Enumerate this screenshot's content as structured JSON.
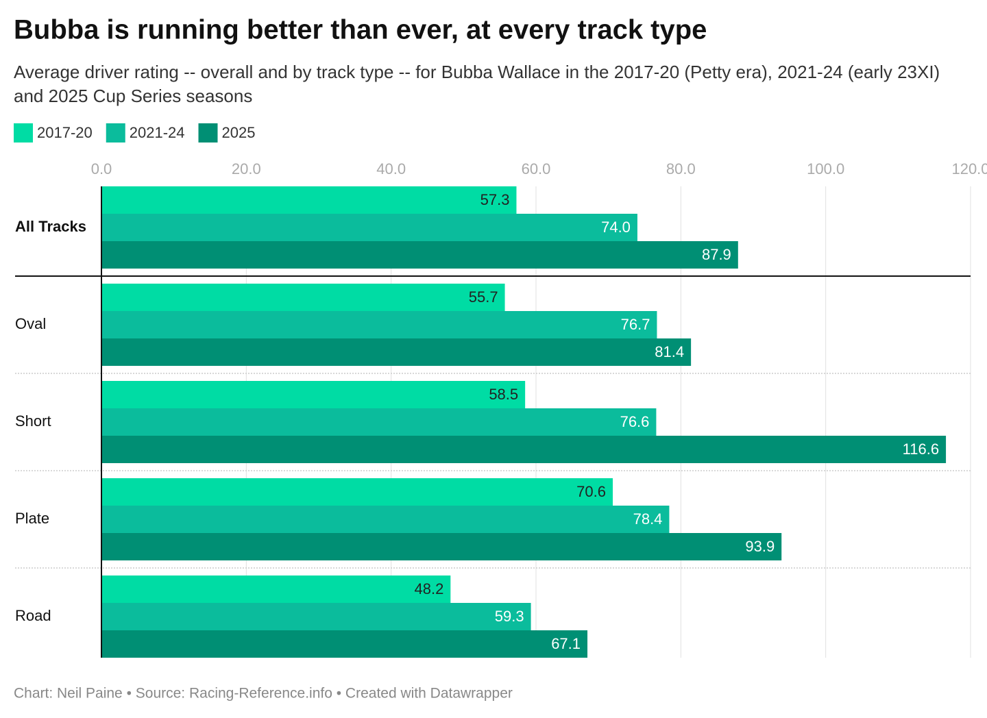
{
  "chart_data": {
    "type": "bar",
    "orientation": "horizontal",
    "title": "Bubba is running better than ever, at every track type",
    "subtitle": "Average driver rating -- overall and by track type -- for Bubba Wallace in the 2017-20 (Petty era), 2021-24 (early 23XI) and 2025 Cup Series seasons",
    "categories": [
      "All Tracks",
      "Oval",
      "Short",
      "Plate",
      "Road"
    ],
    "series": [
      {
        "name": "2017-20",
        "color": "#00dca4",
        "values": [
          57.3,
          55.7,
          58.5,
          70.6,
          48.2
        ]
      },
      {
        "name": "2021-24",
        "color": "#0bbc9c",
        "values": [
          74.0,
          76.7,
          76.6,
          78.4,
          59.3
        ],
        "value_labels": [
          "74.0",
          "76.7",
          "76.6",
          "78.4",
          "59.3"
        ]
      },
      {
        "name": "2025",
        "color": "#008f74",
        "values": [
          87.9,
          81.4,
          116.6,
          93.9,
          67.1
        ]
      }
    ],
    "xlim": [
      0,
      120
    ],
    "xticks": [
      {
        "value": 0,
        "label": "0.0"
      },
      {
        "value": 20,
        "label": "20.0"
      },
      {
        "value": 40,
        "label": "40.0"
      },
      {
        "value": 60,
        "label": "60.0"
      },
      {
        "value": 80,
        "label": "80.0"
      },
      {
        "value": 100,
        "label": "100.0"
      },
      {
        "value": 120,
        "label": "120.0"
      }
    ],
    "grid": true,
    "legend": "top-left",
    "footer": "Chart: Neil Paine • Source: Racing-Reference.info • Created with Datawrapper"
  }
}
